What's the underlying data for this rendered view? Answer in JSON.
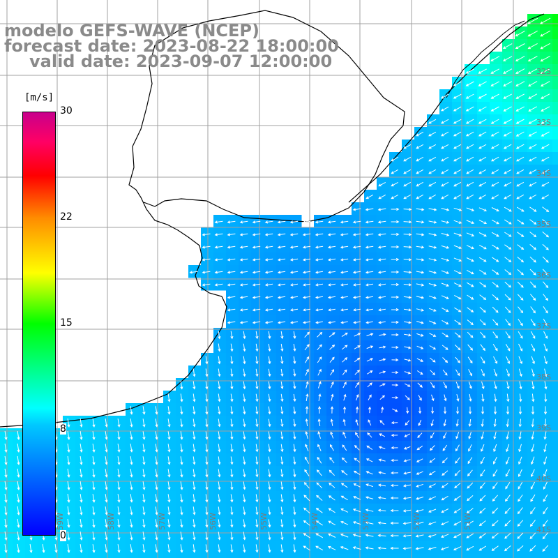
{
  "title": {
    "line1": "modelo GEFS-WAVE (NCEP)",
    "line2": "forecast date: 2023-08-22 18:00:00",
    "line3": "valid date: 2023-09-07 12:00:00"
  },
  "colorbar": {
    "unit": "[m/s]",
    "ticks": [
      {
        "label": "30",
        "value": 30
      },
      {
        "label": "22",
        "value": 22
      },
      {
        "label": "15",
        "value": 15
      },
      {
        "label": "8",
        "value": 8
      },
      {
        "label": "0",
        "value": 0
      }
    ],
    "colors": [
      "#0000ff",
      "#00c8ff",
      "#00ffff",
      "#00ff00",
      "#ffff00",
      "#ff8c00",
      "#ff0000",
      "#c8008c"
    ]
  },
  "map": {
    "lat_labels": [
      "32S",
      "33S",
      "34S",
      "35S",
      "36S",
      "37S",
      "38S",
      "39S",
      "40S",
      "41S"
    ],
    "lon_labels": [
      "59W",
      "58W",
      "57W",
      "56W",
      "55W",
      "54W",
      "53W",
      "52W",
      "51W"
    ],
    "land_color": "#ffffff",
    "grid_color": "#a0a0a0",
    "coast_color": "#000000",
    "vector_color": "#ffffff"
  }
}
